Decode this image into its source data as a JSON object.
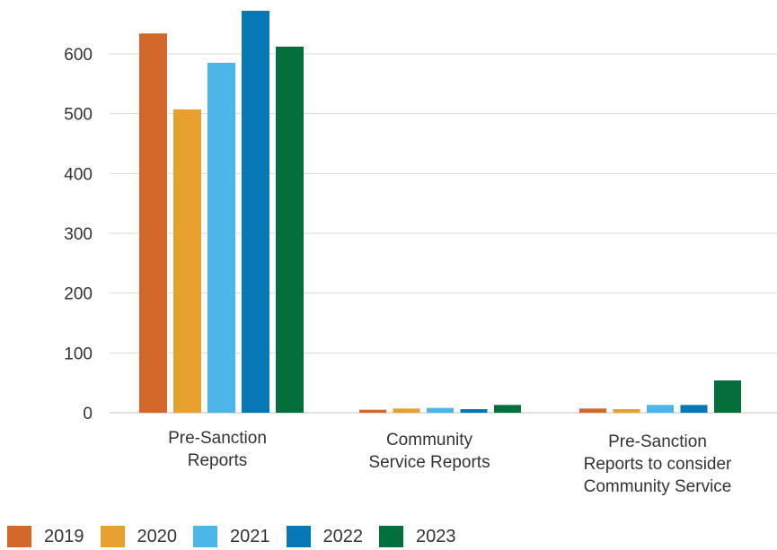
{
  "chart_data": {
    "type": "bar",
    "title": "",
    "xlabel": "",
    "ylabel": "",
    "ylim": [
      0,
      640
    ],
    "yticks": [
      "0",
      "100",
      "200",
      "300",
      "400",
      "500",
      "600"
    ],
    "categories": [
      [
        "Pre-Sanction",
        "Reports"
      ],
      [
        "Community",
        "Service Reports"
      ],
      [
        "Pre-Sanction",
        "Reports to consider",
        "Community Service"
      ]
    ],
    "series": [
      {
        "name": "2019",
        "color": "#D4682A",
        "values": [
          634,
          5,
          7
        ]
      },
      {
        "name": "2020",
        "color": "#E6A02B",
        "values": [
          507,
          7,
          6
        ]
      },
      {
        "name": "2021",
        "color": "#4DB6E8",
        "values": [
          585,
          8,
          13
        ]
      },
      {
        "name": "2022",
        "color": "#0777B5",
        "values": [
          672,
          6,
          13
        ]
      },
      {
        "name": "2023",
        "color": "#03703C",
        "values": [
          612,
          13,
          54
        ]
      }
    ],
    "grid": true,
    "legend_position": "bottom-left"
  }
}
